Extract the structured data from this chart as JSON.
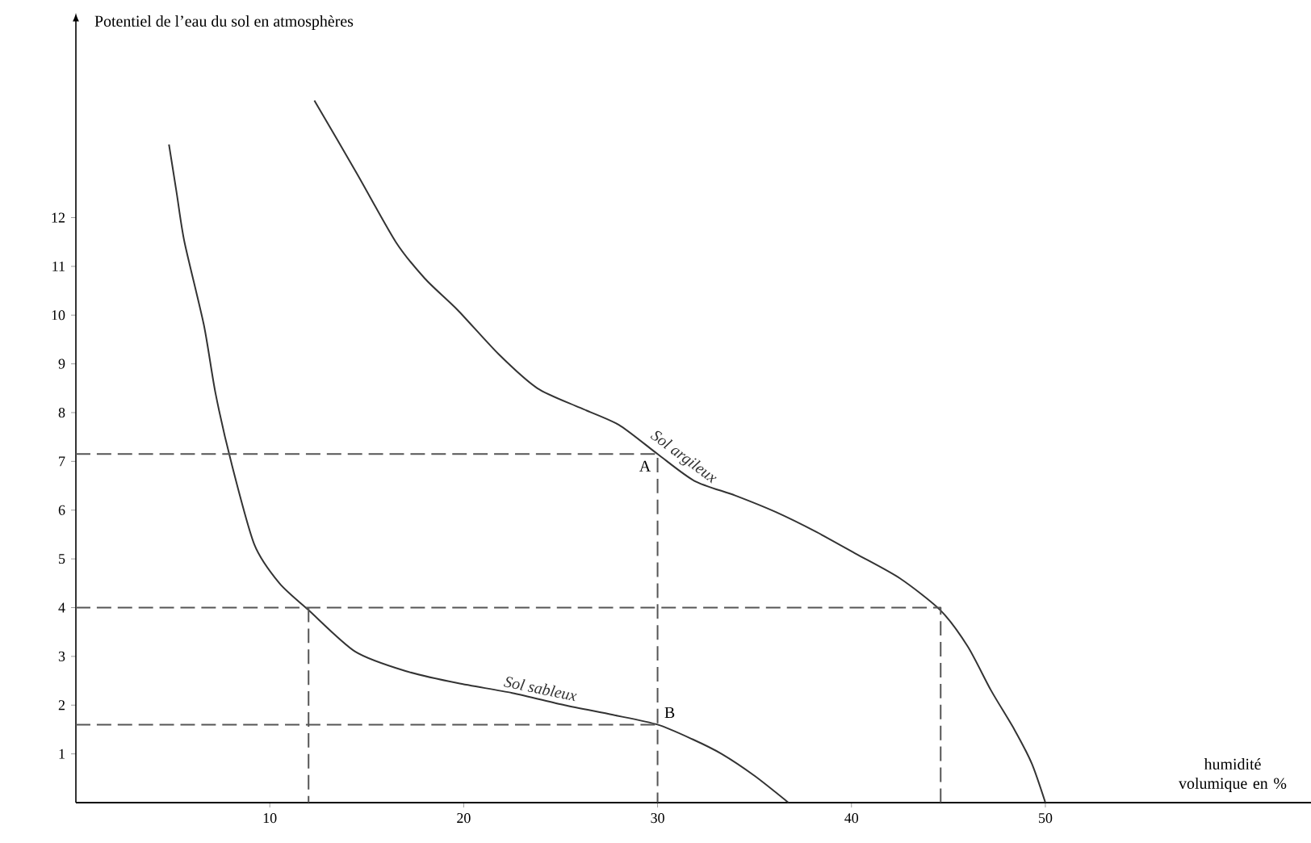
{
  "chart_data": {
    "type": "line",
    "ylabel": "Potentiel de l’eau du sol en atmosphères",
    "xlabel": "humidité volumique en %",
    "xlim": [
      0,
      63.7
    ],
    "ylim": [
      0,
      16
    ],
    "xticks": [
      10,
      20,
      30,
      40,
      50
    ],
    "yticks": [
      1,
      2,
      3,
      4,
      5,
      6,
      7,
      8,
      9,
      10,
      11,
      12
    ],
    "series": [
      {
        "name": "Sol argileux",
        "color": "#333333",
        "line_style": "solid",
        "x": [
          12.3,
          14.5,
          16.5,
          18.0,
          19.7,
          21.8,
          23.8,
          26.0,
          28.0,
          30.0,
          31.9,
          34.0,
          36.1,
          38.2,
          40.25,
          42.5,
          44.6,
          46.0,
          47.2,
          48.4,
          49.3,
          50.0
        ],
        "values": [
          14.4,
          12.9,
          11.5,
          10.75,
          10.1,
          9.2,
          8.5,
          8.1,
          7.75,
          7.15,
          6.6,
          6.3,
          5.96,
          5.55,
          5.1,
          4.6,
          3.94,
          3.2,
          2.3,
          1.5,
          0.8,
          0.0
        ]
      },
      {
        "name": "Sol sableux",
        "color": "#333333",
        "line_style": "solid",
        "x": [
          4.8,
          5.2,
          5.6,
          6.6,
          7.2,
          8.0,
          9.2,
          10.5,
          12.0,
          14.4,
          17.0,
          19.7,
          22.5,
          25.2,
          27.7,
          30.0,
          31.8,
          33.3,
          35.0,
          36.75
        ],
        "values": [
          13.5,
          12.5,
          11.5,
          9.8,
          8.4,
          7.0,
          5.3,
          4.5,
          3.95,
          3.1,
          2.7,
          2.45,
          2.25,
          2.0,
          1.8,
          1.6,
          1.3,
          1.0,
          0.55,
          0.0
        ]
      },
      {
        "color": "#555555",
        "line_style": "dashed",
        "x": [
          0,
          30,
          30
        ],
        "values": [
          7.15,
          7.15,
          0
        ]
      },
      {
        "color": "#555555",
        "line_style": "dashed",
        "x": [
          0,
          30
        ],
        "values": [
          1.6,
          1.6
        ]
      },
      {
        "color": "#555555",
        "line_style": "dashed",
        "x": [
          0,
          44.6,
          44.6
        ],
        "values": [
          4,
          4,
          0
        ]
      },
      {
        "color": "#555555",
        "line_style": "dashed",
        "x": [
          12,
          12
        ],
        "values": [
          4,
          0
        ]
      }
    ],
    "annotations": [
      {
        "text": "A",
        "x": 30,
        "y": 7.15
      },
      {
        "text": "B",
        "x": 30,
        "y": 1.6
      }
    ]
  }
}
